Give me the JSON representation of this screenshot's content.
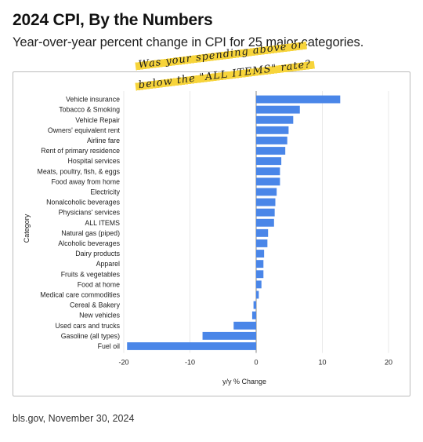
{
  "header": {
    "title": "2024 CPI, By the Numbers",
    "subtitle": "Year-over-year percent change in CPI for 25 major categories."
  },
  "footer": {
    "source": "bls.gov, November 30, 2024"
  },
  "annotation": {
    "line1": "Was your spending above or",
    "line2": "below the \"ALL ITEMS\" rate?",
    "highlight_color": "#f7d43a"
  },
  "colors": {
    "bar": "#4a86e8",
    "grid": "#e3e3e3",
    "axis": "#888888"
  },
  "chart_data": {
    "type": "bar",
    "orientation": "horizontal",
    "xlabel": "y/y % Change",
    "ylabel": "Category",
    "xlim": [
      -20,
      20
    ],
    "xticks": [
      -20,
      -10,
      0,
      10,
      20
    ],
    "grid": true,
    "categories": [
      "Vehicle insurance",
      "Tobacco & Smoking",
      "Vehicle Repair",
      "Owners' equivalent rent",
      "Airline fare",
      "Rent of primary residence",
      "Hospital services",
      "Meats, poultry, fish, & eggs",
      "Food away from home",
      "Electricity",
      "Nonalcoholic beverages",
      "Physicians' services",
      "ALL ITEMS",
      "Natural gas (piped)",
      "Alcoholic beverages",
      "Dairy products",
      "Apparel",
      "Fruits & vegetables",
      "Food at home",
      "Medical care commodities",
      "Cereal & Bakery",
      "New vehicles",
      "Used cars and trucks",
      "Gasoline (all types)",
      "Fuel oil"
    ],
    "values": [
      12.7,
      6.6,
      5.6,
      4.9,
      4.7,
      4.4,
      3.8,
      3.6,
      3.6,
      3.1,
      2.9,
      2.8,
      2.7,
      1.8,
      1.7,
      1.2,
      1.1,
      1.1,
      0.8,
      0.4,
      -0.4,
      -0.6,
      -3.4,
      -8.1,
      -19.5
    ]
  }
}
